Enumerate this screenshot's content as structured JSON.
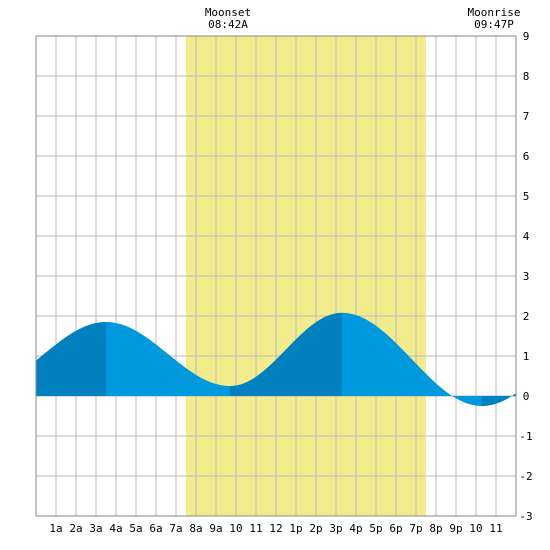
{
  "moon": {
    "moonset_label": "Moonset",
    "moonset_time": "08:42A",
    "moonrise_label": "Moonrise",
    "moonrise_time": "09:47P"
  },
  "chart_data": {
    "type": "area",
    "title": "",
    "xlabel": "",
    "ylabel": "",
    "x_unit": "hour of day",
    "xlim": [
      0,
      24
    ],
    "ylim": [
      -3,
      9
    ],
    "grid": true,
    "x_ticks": [
      {
        "x": 1,
        "label": "1a"
      },
      {
        "x": 2,
        "label": "2a"
      },
      {
        "x": 3,
        "label": "3a"
      },
      {
        "x": 4,
        "label": "4a"
      },
      {
        "x": 5,
        "label": "5a"
      },
      {
        "x": 6,
        "label": "6a"
      },
      {
        "x": 7,
        "label": "7a"
      },
      {
        "x": 8,
        "label": "8a"
      },
      {
        "x": 9,
        "label": "9a"
      },
      {
        "x": 10,
        "label": "10"
      },
      {
        "x": 11,
        "label": "11"
      },
      {
        "x": 12,
        "label": "12"
      },
      {
        "x": 13,
        "label": "1p"
      },
      {
        "x": 14,
        "label": "2p"
      },
      {
        "x": 15,
        "label": "3p"
      },
      {
        "x": 16,
        "label": "4p"
      },
      {
        "x": 17,
        "label": "5p"
      },
      {
        "x": 18,
        "label": "6p"
      },
      {
        "x": 19,
        "label": "7p"
      },
      {
        "x": 20,
        "label": "8p"
      },
      {
        "x": 21,
        "label": "9p"
      },
      {
        "x": 22,
        "label": "10"
      },
      {
        "x": 23,
        "label": "11"
      }
    ],
    "y_ticks": [
      9,
      8,
      7,
      6,
      5,
      4,
      3,
      2,
      1,
      0,
      -1,
      -2,
      -3
    ],
    "daylight": {
      "start": 7.5,
      "end": 19.5,
      "color": "#f2ec8c"
    },
    "tide": {
      "extremes": [
        {
          "x": 3.5,
          "y": 1.85,
          "type": "high"
        },
        {
          "x": 9.7,
          "y": 0.25,
          "type": "low"
        },
        {
          "x": 15.3,
          "y": 2.08,
          "type": "high"
        },
        {
          "x": 22.3,
          "y": -0.25,
          "type": "low"
        }
      ],
      "rising_color": "#0080bf",
      "falling_color": "#0099dd"
    }
  }
}
